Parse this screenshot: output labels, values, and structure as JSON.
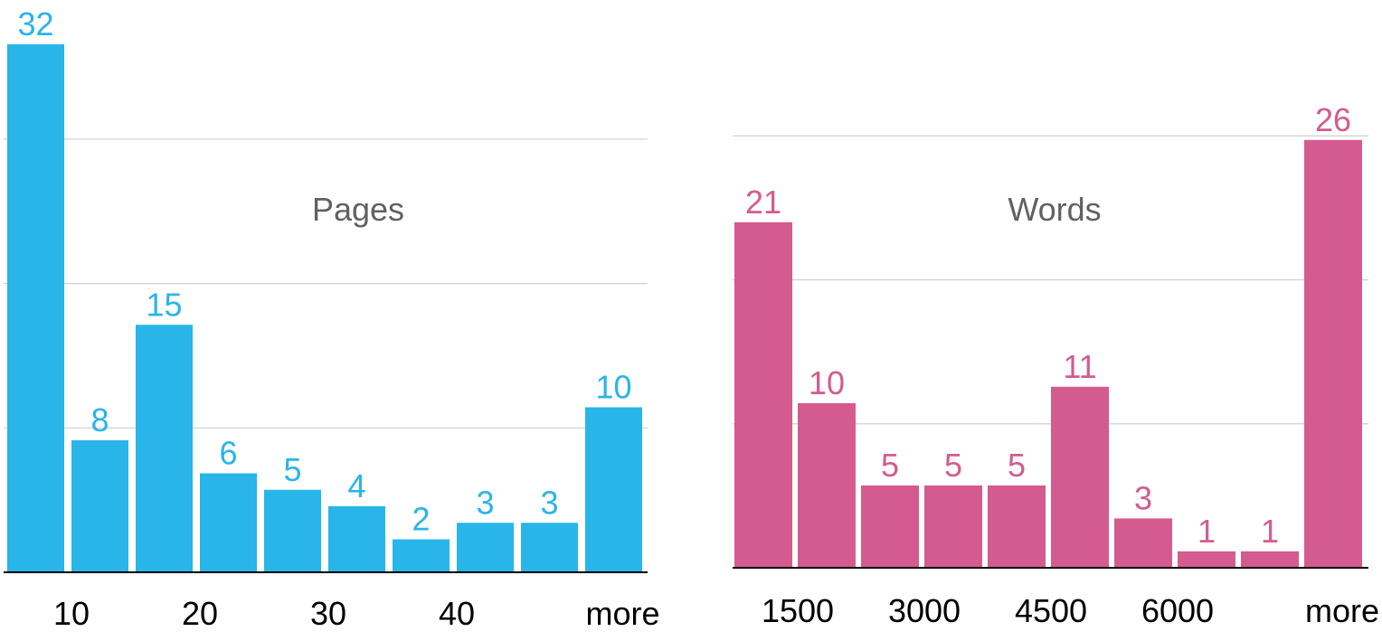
{
  "chart_data": [
    {
      "type": "bar",
      "title": "Pages",
      "color": "#29b5e8",
      "categories": [
        "",
        "10",
        "",
        "20",
        "",
        "30",
        "",
        "40",
        "",
        "more"
      ],
      "values": [
        32,
        8,
        15,
        6,
        5,
        4,
        2,
        3,
        3,
        10
      ],
      "ylim": [
        0,
        32
      ],
      "grid": true,
      "gridlines": [
        8.75,
        17.5,
        26.25
      ]
    },
    {
      "type": "bar",
      "title": "Words",
      "color": "#d45b8f",
      "categories": [
        "",
        "1500",
        "",
        "3000",
        "",
        "4500",
        "",
        "6000",
        "",
        "more"
      ],
      "values": [
        21,
        10,
        5,
        5,
        5,
        11,
        3,
        1,
        1,
        26
      ],
      "ylim": [
        0,
        26
      ],
      "grid": true,
      "gridlines": [
        8.75,
        17.5,
        26.25
      ]
    }
  ]
}
